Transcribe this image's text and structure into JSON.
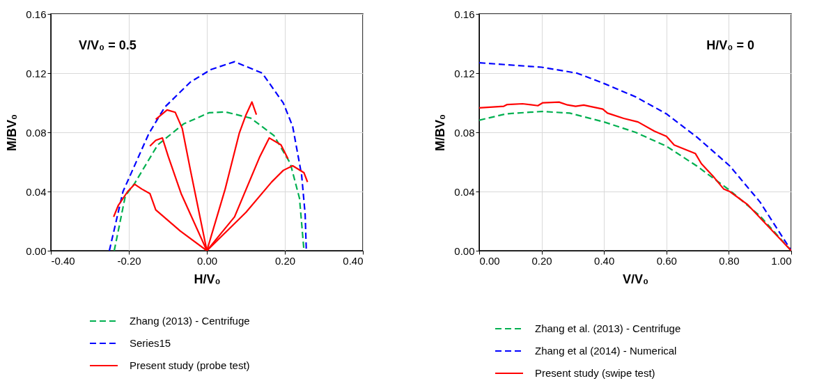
{
  "chart_data": [
    {
      "type": "line",
      "xlabel": "H/V₀",
      "ylabel": "M/BV₀",
      "annotations": [
        "V/V₀ = 0.5"
      ],
      "xlim": [
        -0.4,
        0.4
      ],
      "ylim": [
        0,
        0.16
      ],
      "xticks": [
        {
          "value": -0.4,
          "label": "-0.40"
        },
        {
          "value": -0.2,
          "label": "-0.20"
        },
        {
          "value": 0,
          "label": "0.00"
        },
        {
          "value": 0.2,
          "label": "0.20"
        },
        {
          "value": 0.4,
          "label": "0.40"
        }
      ],
      "yticks": [
        {
          "value": 0,
          "label": "0.00"
        },
        {
          "value": 0.04,
          "label": "0.04"
        },
        {
          "value": 0.08,
          "label": "0.08"
        },
        {
          "value": 0.12,
          "label": "0.12"
        },
        {
          "value": 0.16,
          "label": "0.16"
        }
      ],
      "grid": true,
      "legend": "bottom",
      "series": [
        {
          "name": "Zhang (2013) - Centrifuge",
          "color": "#00b050",
          "line_style": "dashed",
          "x": [
            -0.2375,
            -0.209,
            -0.185,
            -0.126,
            -0.06,
            0.005,
            0.047,
            0.1125,
            0.172,
            0.214,
            0.2375,
            0.249
          ],
          "values": [
            0,
            0.037,
            0.0456,
            0.0715,
            0.0856,
            0.0932,
            0.0938,
            0.0896,
            0.0778,
            0.059,
            0.0354,
            0
          ]
        },
        {
          "name": "Series15",
          "color": "#0000ff",
          "line_style": "dashed",
          "x": [
            -0.25,
            -0.215,
            -0.149,
            -0.108,
            -0.042,
            0.011,
            0.071,
            0.142,
            0.196,
            0.22,
            0.243,
            0.252,
            0.255
          ],
          "values": [
            0,
            0.04,
            0.079,
            0.097,
            0.114,
            0.1225,
            0.1277,
            0.12,
            0.0998,
            0.084,
            0.051,
            0.0245,
            0
          ]
        },
        {
          "name": "Present study (probe test)",
          "color": "#ff0000",
          "line_style": "solid",
          "x": [
            0,
            -0.069,
            -0.131,
            -0.146,
            -0.167,
            -0.185,
            -0.203,
            -0.227,
            -0.239,
            null,
            0,
            -0.066,
            -0.099,
            -0.114,
            -0.131,
            -0.146,
            null,
            0,
            -0.042,
            -0.063,
            -0.081,
            -0.102,
            -0.131,
            null,
            0,
            0.047,
            0.083,
            0.1005,
            0.1155,
            0.127,
            null,
            0,
            0.071,
            0.136,
            0.16,
            0.19,
            0.208,
            null,
            0,
            0.1005,
            0.166,
            0.196,
            0.22,
            0.249,
            0.258
          ],
          "values": [
            0,
            0.0135,
            0.0276,
            0.0386,
            0.0417,
            0.0449,
            0.04,
            0.0307,
            0.0229,
            null,
            0,
            0.0386,
            0.0637,
            0.0762,
            0.0746,
            0.0707,
            null,
            0,
            0.0543,
            0.0825,
            0.0935,
            0.0951,
            0.0888,
            null,
            0,
            0.0417,
            0.0793,
            0.0919,
            0.1005,
            0.0919,
            null,
            0,
            0.0229,
            0.0637,
            0.0762,
            0.0715,
            0.0621,
            null,
            0,
            0.026,
            0.0464,
            0.0543,
            0.0574,
            0.0527,
            0.0464
          ]
        }
      ]
    },
    {
      "type": "line",
      "xlabel": "V/V₀",
      "ylabel": "M/BV₀",
      "annotations": [
        "H/V₀ = 0"
      ],
      "xlim": [
        0,
        1
      ],
      "ylim": [
        0,
        0.16
      ],
      "xticks": [
        {
          "value": 0,
          "label": "0.00"
        },
        {
          "value": 0.2,
          "label": "0.20"
        },
        {
          "value": 0.4,
          "label": "0.40"
        },
        {
          "value": 0.6,
          "label": "0.60"
        },
        {
          "value": 0.8,
          "label": "0.80"
        },
        {
          "value": 1,
          "label": "1.00"
        }
      ],
      "yticks": [
        {
          "value": 0,
          "label": "0.00"
        },
        {
          "value": 0.04,
          "label": "0.04"
        },
        {
          "value": 0.08,
          "label": "0.08"
        },
        {
          "value": 0.12,
          "label": "0.12"
        },
        {
          "value": 0.16,
          "label": "0.16"
        }
      ],
      "grid": true,
      "legend": "bottom",
      "series": [
        {
          "name": "Zhang et al. (2013) - Centrifuge",
          "color": "#00b050",
          "line_style": "dashed",
          "x": [
            0,
            0.087,
            0.2,
            0.29,
            0.4,
            0.501,
            0.6,
            0.697,
            0.803,
            0.9,
            1
          ],
          "values": [
            0.0882,
            0.0925,
            0.0941,
            0.093,
            0.087,
            0.08,
            0.0706,
            0.0573,
            0.0408,
            0.0235,
            0
          ]
        },
        {
          "name": "Zhang et al (2014) - Numerical",
          "color": "#0000ff",
          "line_style": "dashed",
          "x": [
            0,
            0.2,
            0.313,
            0.4,
            0.501,
            0.6,
            0.697,
            0.803,
            0.9,
            1
          ],
          "values": [
            0.127,
            0.124,
            0.12,
            0.113,
            0.104,
            0.0925,
            0.0769,
            0.0573,
            0.0329,
            0
          ]
        },
        {
          "name": "Present study (swipe test)",
          "color": "#ff0000",
          "line_style": "solid",
          "x": [
            0,
            0.079,
            0.09,
            0.139,
            0.188,
            0.203,
            0.256,
            0.283,
            0.309,
            0.335,
            0.396,
            0.411,
            0.463,
            0.509,
            0.561,
            0.6,
            0.625,
            0.693,
            0.712,
            0.75,
            0.784,
            0.803,
            0.859,
            1
          ],
          "values": [
            0.0965,
            0.0976,
            0.0988,
            0.0993,
            0.098,
            0.0999,
            0.1004,
            0.0985,
            0.0976,
            0.0984,
            0.0957,
            0.093,
            0.0894,
            0.087,
            0.0808,
            0.0773,
            0.0714,
            0.0656,
            0.0588,
            0.0502,
            0.0416,
            0.04,
            0.0314,
            0
          ]
        }
      ]
    }
  ]
}
